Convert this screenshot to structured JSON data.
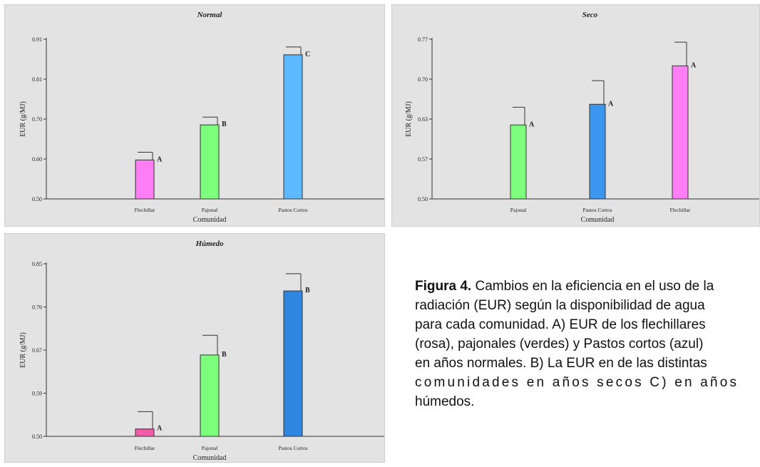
{
  "chart_data": [
    {
      "type": "bar",
      "title": "Normal",
      "xlabel": "Comunidad",
      "ylabel": "EUR (g/MJ)",
      "y_ticks": [
        "0.50",
        "0.60",
        "0.70",
        "0.81",
        "0.91"
      ],
      "ylim": [
        0.5,
        0.91
      ],
      "categories": [
        "Flechillar",
        "Pajonal",
        "Pastos Cortos"
      ],
      "values": [
        0.6,
        0.69,
        0.87
      ],
      "errors": [
        0.02,
        0.02,
        0.02
      ],
      "letters": [
        "A",
        "B",
        "C"
      ],
      "colors": [
        "#ff7df5",
        "#7dff7d",
        "#5cb8ff"
      ]
    },
    {
      "type": "bar",
      "title": "Seco",
      "xlabel": "Comunidad",
      "ylabel": "EUR (g/MJ)",
      "y_ticks": [
        "0.50",
        "0.57",
        "0.63",
        "0.70",
        "0.77"
      ],
      "ylim": [
        0.5,
        0.77
      ],
      "categories": [
        "Pajonal",
        "Pastos Cortos",
        "Flechillar"
      ],
      "values": [
        0.625,
        0.66,
        0.725
      ],
      "errors": [
        0.03,
        0.04,
        0.04
      ],
      "letters": [
        "A",
        "A",
        "A"
      ],
      "colors": [
        "#7dff7d",
        "#3b96f0",
        "#ff7df5"
      ]
    },
    {
      "type": "bar",
      "title": "Húmedo",
      "xlabel": "Comunidad",
      "ylabel": "EUR (g/MJ)",
      "y_ticks": [
        "0.50",
        "0.59",
        "0.67",
        "0.76",
        "0.85"
      ],
      "ylim": [
        0.5,
        0.85
      ],
      "categories": [
        "Flechillar",
        "Pajonal",
        "Pastos Cortos"
      ],
      "values": [
        0.515,
        0.665,
        0.795
      ],
      "errors": [
        0.035,
        0.04,
        0.035
      ],
      "letters": [
        "A",
        "B",
        "B"
      ],
      "colors": [
        "#f05ca8",
        "#7dff7d",
        "#2f86e0"
      ]
    }
  ],
  "caption": {
    "label": "Figura 4.",
    "line1": " Cambios en la eficiencia en el uso de la",
    "line2": "radiación (EUR) según la disponibilidad de agua",
    "line3": "para cada comunidad. A) EUR de los flechillares",
    "line4": "(rosa), pajonales (verdes) y Pastos cortos (azul)",
    "line5": "en años normales. B) La EUR en de las distintas",
    "line6": "comunidades en años secos C) en años",
    "line7": "húmedos."
  }
}
